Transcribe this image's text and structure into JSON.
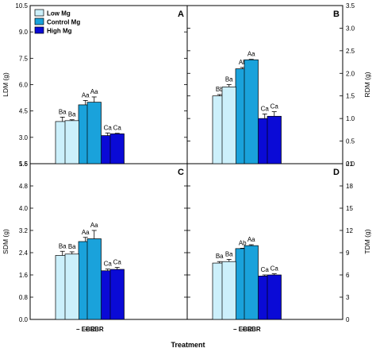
{
  "chart_data": {
    "type": "bar",
    "series": [
      {
        "name": "Low Mg",
        "color": "#ccf0fb"
      },
      {
        "name": "Control Mg",
        "color": "#1aa2db"
      },
      {
        "name": "High Mg",
        "color": "#0a0ad6"
      }
    ],
    "categories": [
      "− EBR",
      "+ EBR"
    ],
    "xlabel": "Treatment",
    "panels": [
      {
        "id": "A",
        "ylabel": "LDM (g)",
        "axis_side": "left",
        "ylim": [
          1.5,
          10.5
        ],
        "yticks": [
          "1.5",
          "3.0",
          "4.5",
          "6.0",
          "7.5",
          "9.0",
          "10.5"
        ],
        "values": [
          [
            3.9,
            4.85,
            3.1
          ],
          [
            3.95,
            5.0,
            3.2
          ]
        ],
        "errors": [
          [
            0.25,
            0.25,
            0.15
          ],
          [
            0.05,
            0.3,
            0.03
          ]
        ],
        "labels": [
          [
            "Ba",
            "Aa",
            "Ca"
          ],
          [
            "Ba",
            "Aa",
            "Ca"
          ]
        ]
      },
      {
        "id": "B",
        "ylabel": "RDM (g)",
        "axis_side": "right",
        "ylim": [
          0.0,
          3.5
        ],
        "yticks": [
          "0.0",
          "0.5",
          "1.0",
          "1.5",
          "2.0",
          "2.5",
          "3.0",
          "3.5"
        ],
        "values": [
          [
            1.5,
            2.1,
            1.0
          ],
          [
            1.7,
            2.3,
            1.05
          ]
        ],
        "errors": [
          [
            0.03,
            0.03,
            0.1
          ],
          [
            0.05,
            0.01,
            0.1
          ]
        ],
        "labels": [
          [
            "Bb",
            "Ab",
            "Ca"
          ],
          [
            "Ba",
            "Aa",
            "Ca"
          ]
        ]
      },
      {
        "id": "C",
        "ylabel": "SDM (g)",
        "axis_side": "left",
        "ylim": [
          0.0,
          5.6
        ],
        "yticks": [
          "0.0",
          "0.8",
          "1.6",
          "2.4",
          "3.2",
          "4.0",
          "4.8",
          "5.6"
        ],
        "values": [
          [
            2.3,
            2.8,
            1.75
          ],
          [
            2.35,
            2.9,
            1.8
          ]
        ],
        "errors": [
          [
            0.15,
            0.15,
            0.06
          ],
          [
            0.08,
            0.3,
            0.07
          ]
        ],
        "labels": [
          [
            "Ba",
            "Aa",
            "Ca"
          ],
          [
            "Ba",
            "Aa",
            "Ca"
          ]
        ]
      },
      {
        "id": "D",
        "ylabel": "TDM (g)",
        "axis_side": "right",
        "ylim": [
          0,
          21
        ],
        "yticks": [
          "0",
          "3",
          "6",
          "9",
          "12",
          "15",
          "18",
          "21"
        ],
        "values": [
          [
            7.6,
            9.55,
            5.85
          ],
          [
            7.8,
            9.95,
            6.0
          ]
        ],
        "errors": [
          [
            0.2,
            0.05,
            0.15
          ],
          [
            0.3,
            0.12,
            0.15
          ]
        ],
        "labels": [
          [
            "Ba",
            "Ab",
            "Ca"
          ],
          [
            "Ba",
            "Aa",
            "Ca"
          ]
        ]
      }
    ]
  }
}
